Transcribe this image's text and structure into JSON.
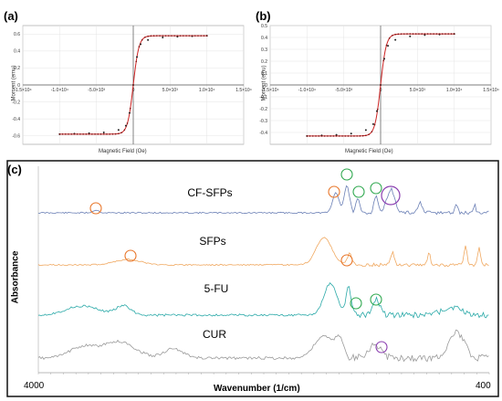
{
  "chart_data": [
    {
      "type": "scatter",
      "panel": "(a)",
      "xlabel": "Magnetic Field (Oe)",
      "ylabel": "Moment (emu)",
      "xlim": [
        -15000,
        15000
      ],
      "ylim": [
        -0.7,
        0.7
      ],
      "x_ticks": [
        -15000,
        -10000,
        -5000,
        0,
        5000,
        10000,
        15000
      ],
      "x_tick_labels": [
        "-1.5×10⁴",
        "-1.0×10⁴",
        "-5.0×10³",
        "0",
        "5.0×10³",
        "1.0×10⁴",
        "1.5×10⁴"
      ],
      "y_ticks": [
        -0.6,
        -0.4,
        -0.2,
        0,
        0.2,
        0.4,
        0.6
      ],
      "y_tick_labels": [
        "-0.6",
        "-0.4",
        "-0.2",
        "0",
        "0.2",
        "0.4",
        "0.6"
      ],
      "ms": 0.58,
      "x": [
        -10000,
        -8000,
        -6000,
        -4000,
        -2000,
        -1000,
        -500,
        0,
        500,
        1000,
        2000,
        4000,
        6000,
        8000,
        10000
      ],
      "y": [
        -0.58,
        -0.575,
        -0.57,
        -0.56,
        -0.53,
        -0.48,
        -0.33,
        0,
        0.33,
        0.48,
        0.53,
        0.56,
        0.57,
        0.575,
        0.58
      ]
    },
    {
      "type": "scatter",
      "panel": "(b)",
      "xlabel": "Magnetic Field (Oe)",
      "ylabel": "Moment (emu)",
      "xlim": [
        -15000,
        15000
      ],
      "ylim": [
        -0.5,
        0.5
      ],
      "x_ticks": [
        -15000,
        -10000,
        -5000,
        0,
        5000,
        10000,
        15000
      ],
      "x_tick_labels": [
        "-1.5×10⁴",
        "-1.0×10⁴",
        "-5.0×10³",
        "0",
        "5.0×10³",
        "1.0×10⁴",
        "1.5×10⁴"
      ],
      "y_ticks": [
        -0.4,
        -0.3,
        -0.2,
        -0.1,
        0,
        0.1,
        0.2,
        0.3,
        0.4,
        0.5
      ],
      "y_tick_labels": [
        "-0.4",
        "-0.3",
        "-0.2",
        "-0.1",
        "0",
        "0.1",
        "0.2",
        "0.3",
        "0.4",
        "0.5"
      ],
      "ms": 0.43,
      "x": [
        -10000,
        -8000,
        -6000,
        -4000,
        -2000,
        -1000,
        -500,
        0,
        500,
        1000,
        2000,
        4000,
        6000,
        8000,
        10000
      ],
      "y": [
        -0.43,
        -0.425,
        -0.42,
        -0.41,
        -0.38,
        -0.33,
        -0.22,
        0,
        0.22,
        0.33,
        0.38,
        0.41,
        0.42,
        0.425,
        0.43
      ]
    },
    {
      "type": "line",
      "panel": "(c)",
      "xlabel": "Wavenumber (1/cm)",
      "ylabel": "Absorbance",
      "xlim": [
        4000,
        400
      ],
      "x_end_labels": [
        "4000",
        "400"
      ],
      "series": [
        {
          "name": "CF-SFPs",
          "color": "#6a7fb5"
        },
        {
          "name": "SFPs",
          "color": "#f0a860"
        },
        {
          "name": "5-FU",
          "color": "#2aa9a8"
        },
        {
          "name": "CUR",
          "color": "#9a9a9a"
        }
      ]
    }
  ],
  "colors": {
    "orange_circle": "#e8762a",
    "green_circle": "#2fa84f",
    "purple_circle": "#8b3fb0",
    "hysteresis_line": "#cc2222"
  }
}
